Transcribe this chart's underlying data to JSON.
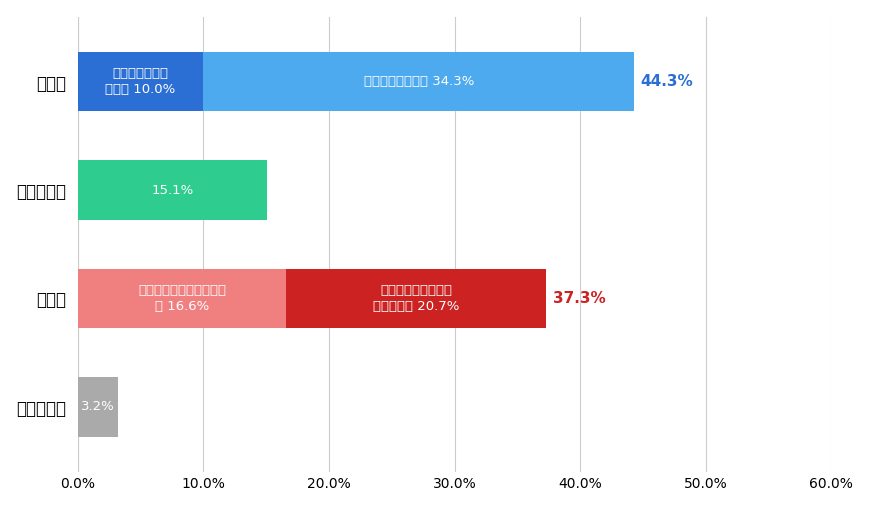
{
  "categories": [
    "楽観的",
    "変わらない",
    "悲観的",
    "わからない"
  ],
  "segments": [
    [
      {
        "label": "ずいぶん平和に\nなった 10.0%",
        "value": 10.0,
        "color": "#2B6FD4",
        "text_color": "white"
      },
      {
        "label": "少し平和になった 34.3%",
        "value": 34.3,
        "color": "#4DAAEE",
        "text_color": "white"
      }
    ],
    [
      {
        "label": "15.1%",
        "value": 15.1,
        "color": "#2ECC8E",
        "text_color": "white"
      }
    ],
    [
      {
        "label": "昔の方が、少し平和だっ\nた 16.6%",
        "value": 16.6,
        "color": "#F08080",
        "text_color": "white"
      },
      {
        "label": "昔の方が、ずいぶん\n平和だった 20.7%",
        "value": 20.7,
        "color": "#CC2222",
        "text_color": "white"
      }
    ],
    [
      {
        "label": "3.2%",
        "value": 3.2,
        "color": "#AAAAAA",
        "text_color": "white"
      }
    ]
  ],
  "totals": [
    "44.3%",
    null,
    "37.3%",
    null
  ],
  "total_colors": [
    "#2B6FD4",
    "#2ECC8E",
    "#CC2222",
    "#AAAAAA"
  ],
  "xlim": [
    0,
    60
  ],
  "xticks": [
    0,
    10,
    20,
    30,
    40,
    50,
    60
  ],
  "xtick_labels": [
    "0.0%",
    "10.0%",
    "20.0%",
    "30.0%",
    "40.0%",
    "50.0%",
    "60.0%"
  ],
  "background_color": "#ffffff",
  "grid_color": "#cccccc",
  "bar_height": 0.55,
  "label_fontsize": 9.5,
  "tick_fontsize": 10,
  "ytick_fontsize": 12
}
